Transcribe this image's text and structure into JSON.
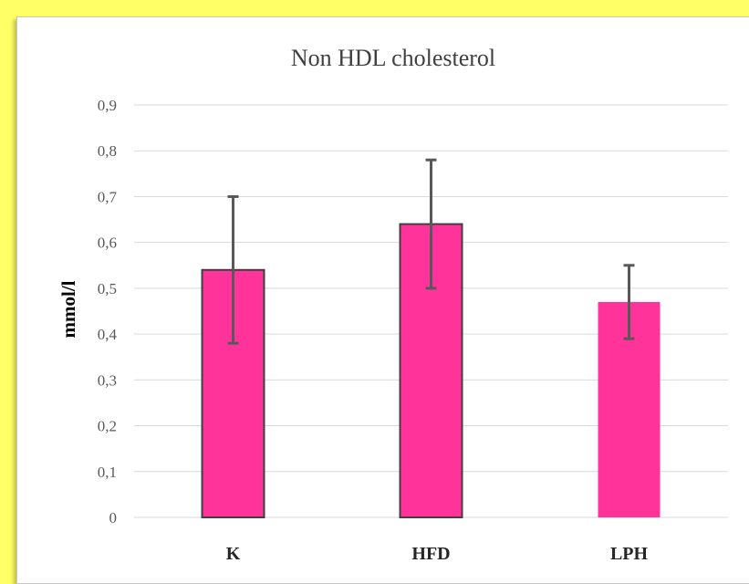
{
  "chart_data": {
    "type": "bar",
    "title": "Non HDL cholesterol",
    "xlabel": "",
    "ylabel": "mmol/l",
    "categories": [
      "K",
      "HFD",
      "LPH"
    ],
    "values": [
      0.54,
      0.64,
      0.47
    ],
    "error_low": [
      0.38,
      0.5,
      0.39
    ],
    "error_high": [
      0.7,
      0.78,
      0.55
    ],
    "ylim": [
      0,
      0.9
    ],
    "yticks": [
      "0",
      "0,1",
      "0,2",
      "0,3",
      "0,4",
      "0,5",
      "0,6",
      "0,7",
      "0,8",
      "0,9"
    ],
    "grid": true,
    "bar_color": "#ff3399",
    "error_bar_color": "#595959",
    "background_color": "#ffff66"
  }
}
